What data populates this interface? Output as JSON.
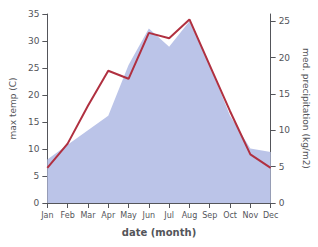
{
  "chart_data": {
    "type": "line",
    "categories": [
      "Jan",
      "Feb",
      "Mar",
      "Apr",
      "May",
      "Jun",
      "Jul",
      "Aug",
      "Sep",
      "Oct",
      "Nov",
      "Dec"
    ],
    "xlabel": "date (month)",
    "ylabel": "max temp (C)",
    "y2label": "med. precipitation (kg/m2)",
    "ylim": [
      0,
      35
    ],
    "yticks": [
      0,
      5,
      10,
      15,
      20,
      25,
      30,
      35
    ],
    "y2lim": [
      0,
      26
    ],
    "y2ticks": [
      0,
      5,
      10,
      15,
      20,
      25
    ],
    "grid": false,
    "series": [
      {
        "type": "area",
        "axis": "y2",
        "color": "#bbc4e8",
        "values": [
          6.0,
          8.0,
          10.0,
          12.0,
          19.0,
          24.0,
          21.5,
          25.0,
          19.0,
          12.0,
          7.5,
          7.0
        ]
      },
      {
        "type": "line",
        "color": "#b03040",
        "values": [
          6.5,
          11.0,
          18.0,
          24.5,
          23.0,
          31.5,
          30.5,
          34.0,
          25.5,
          17.0,
          9.0,
          6.5
        ]
      }
    ]
  }
}
